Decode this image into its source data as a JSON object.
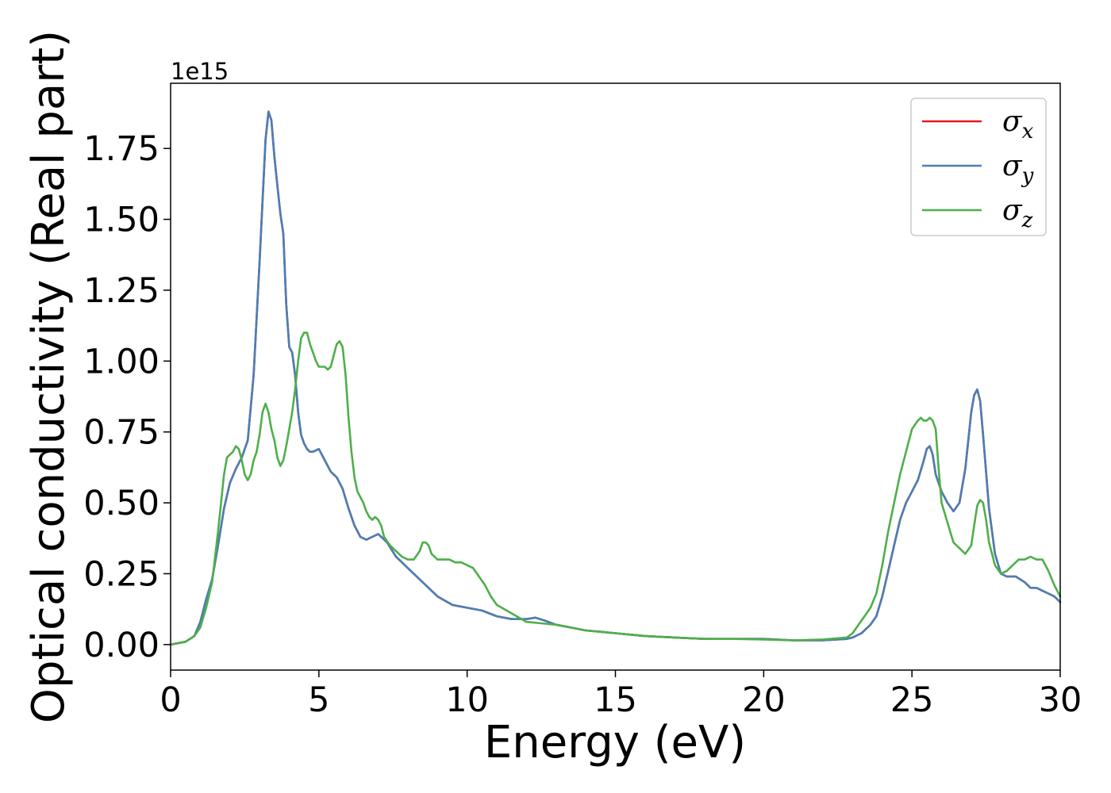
{
  "chart_data": {
    "type": "line",
    "title": "",
    "xlabel": "Energy (eV)",
    "ylabel": "Optical conductivity (Real part)",
    "y_offset_label": "1e15",
    "xlim": [
      0,
      30
    ],
    "ylim": [
      -0.09,
      1.98
    ],
    "x_ticks": [
      0,
      5,
      10,
      15,
      20,
      25,
      30
    ],
    "x_tick_labels": [
      "0",
      "5",
      "10",
      "15",
      "20",
      "25",
      "30"
    ],
    "y_ticks": [
      0.0,
      0.25,
      0.5,
      0.75,
      1.0,
      1.25,
      1.5,
      1.75
    ],
    "y_tick_labels": [
      "0.00",
      "0.25",
      "0.50",
      "0.75",
      "1.00",
      "1.25",
      "1.50",
      "1.75"
    ],
    "grid": false,
    "legend": {
      "position": "top-right",
      "entries": [
        {
          "base": "σ",
          "sub": "x",
          "color": "#e41a1c"
        },
        {
          "base": "σ",
          "sub": "y",
          "color": "#4a7fb5"
        },
        {
          "base": "σ",
          "sub": "z",
          "color": "#4daf4a"
        }
      ]
    },
    "series": [
      {
        "color": "#e41a1c",
        "x": [
          0,
          0.5,
          0.8,
          1.0,
          1.2,
          1.4,
          1.6,
          1.8,
          2.0,
          2.2,
          2.4,
          2.6,
          2.8,
          3.0,
          3.2,
          3.3,
          3.4,
          3.5,
          3.6,
          3.7,
          3.8,
          3.9,
          4.0,
          4.1,
          4.2,
          4.3,
          4.4,
          4.5,
          4.6,
          4.7,
          4.8,
          5.0,
          5.2,
          5.4,
          5.6,
          5.8,
          6.0,
          6.2,
          6.4,
          6.6,
          6.8,
          7.0,
          7.3,
          7.6,
          8.0,
          8.5,
          9.0,
          9.5,
          10.0,
          10.5,
          11.0,
          11.5,
          12.0,
          12.3,
          12.6,
          13.0,
          13.5,
          14.0,
          14.5,
          15.0,
          16.0,
          17.0,
          18.0,
          19.0,
          20.0,
          21.0,
          22.0,
          22.8,
          23.0,
          23.3,
          23.6,
          23.8,
          24.0,
          24.2,
          24.4,
          24.6,
          24.8,
          25.0,
          25.2,
          25.4,
          25.5,
          25.6,
          25.7,
          25.8,
          26.0,
          26.2,
          26.4,
          26.6,
          26.8,
          27.0,
          27.1,
          27.2,
          27.3,
          27.4,
          27.6,
          27.8,
          28.0,
          28.2,
          28.5,
          28.8,
          29.0,
          29.2,
          29.4,
          29.6,
          29.8,
          30.0
        ],
        "values": [
          0.0,
          0.01,
          0.03,
          0.08,
          0.16,
          0.23,
          0.35,
          0.48,
          0.57,
          0.62,
          0.66,
          0.72,
          0.95,
          1.35,
          1.78,
          1.88,
          1.85,
          1.72,
          1.62,
          1.52,
          1.45,
          1.2,
          1.05,
          1.03,
          0.95,
          0.82,
          0.74,
          0.71,
          0.69,
          0.68,
          0.68,
          0.69,
          0.65,
          0.61,
          0.59,
          0.55,
          0.48,
          0.42,
          0.38,
          0.37,
          0.38,
          0.39,
          0.36,
          0.31,
          0.27,
          0.22,
          0.17,
          0.14,
          0.13,
          0.12,
          0.1,
          0.09,
          0.09,
          0.095,
          0.085,
          0.07,
          0.06,
          0.05,
          0.045,
          0.04,
          0.03,
          0.025,
          0.02,
          0.02,
          0.02,
          0.015,
          0.015,
          0.02,
          0.025,
          0.04,
          0.07,
          0.1,
          0.17,
          0.26,
          0.35,
          0.44,
          0.5,
          0.54,
          0.58,
          0.65,
          0.69,
          0.7,
          0.67,
          0.6,
          0.54,
          0.5,
          0.47,
          0.5,
          0.62,
          0.82,
          0.88,
          0.9,
          0.86,
          0.74,
          0.48,
          0.32,
          0.25,
          0.24,
          0.24,
          0.22,
          0.2,
          0.2,
          0.19,
          0.18,
          0.17,
          0.15
        ]
      },
      {
        "color": "#4a7fb5",
        "x": [
          0,
          0.5,
          0.8,
          1.0,
          1.2,
          1.4,
          1.6,
          1.8,
          2.0,
          2.2,
          2.4,
          2.6,
          2.8,
          3.0,
          3.2,
          3.3,
          3.4,
          3.5,
          3.6,
          3.7,
          3.8,
          3.9,
          4.0,
          4.1,
          4.2,
          4.3,
          4.4,
          4.5,
          4.6,
          4.7,
          4.8,
          5.0,
          5.2,
          5.4,
          5.6,
          5.8,
          6.0,
          6.2,
          6.4,
          6.6,
          6.8,
          7.0,
          7.3,
          7.6,
          8.0,
          8.5,
          9.0,
          9.5,
          10.0,
          10.5,
          11.0,
          11.5,
          12.0,
          12.3,
          12.6,
          13.0,
          13.5,
          14.0,
          14.5,
          15.0,
          16.0,
          17.0,
          18.0,
          19.0,
          20.0,
          21.0,
          22.0,
          22.8,
          23.0,
          23.3,
          23.6,
          23.8,
          24.0,
          24.2,
          24.4,
          24.6,
          24.8,
          25.0,
          25.2,
          25.4,
          25.5,
          25.6,
          25.7,
          25.8,
          26.0,
          26.2,
          26.4,
          26.6,
          26.8,
          27.0,
          27.1,
          27.2,
          27.3,
          27.4,
          27.6,
          27.8,
          28.0,
          28.2,
          28.5,
          28.8,
          29.0,
          29.2,
          29.4,
          29.6,
          29.8,
          30.0
        ],
        "values": [
          0.0,
          0.01,
          0.03,
          0.08,
          0.16,
          0.23,
          0.35,
          0.48,
          0.57,
          0.62,
          0.66,
          0.72,
          0.95,
          1.35,
          1.78,
          1.88,
          1.85,
          1.72,
          1.62,
          1.52,
          1.45,
          1.2,
          1.05,
          1.03,
          0.95,
          0.82,
          0.74,
          0.71,
          0.69,
          0.68,
          0.68,
          0.69,
          0.65,
          0.61,
          0.59,
          0.55,
          0.48,
          0.42,
          0.38,
          0.37,
          0.38,
          0.39,
          0.36,
          0.31,
          0.27,
          0.22,
          0.17,
          0.14,
          0.13,
          0.12,
          0.1,
          0.09,
          0.09,
          0.095,
          0.085,
          0.07,
          0.06,
          0.05,
          0.045,
          0.04,
          0.03,
          0.025,
          0.02,
          0.02,
          0.02,
          0.015,
          0.015,
          0.02,
          0.025,
          0.04,
          0.07,
          0.1,
          0.17,
          0.26,
          0.35,
          0.44,
          0.5,
          0.54,
          0.58,
          0.65,
          0.69,
          0.7,
          0.67,
          0.6,
          0.54,
          0.5,
          0.47,
          0.5,
          0.62,
          0.82,
          0.88,
          0.9,
          0.86,
          0.74,
          0.48,
          0.32,
          0.25,
          0.24,
          0.24,
          0.22,
          0.2,
          0.2,
          0.19,
          0.18,
          0.17,
          0.15
        ]
      },
      {
        "color": "#4daf4a",
        "x": [
          0,
          0.5,
          0.8,
          1.0,
          1.2,
          1.4,
          1.6,
          1.8,
          1.9,
          2.0,
          2.1,
          2.2,
          2.3,
          2.4,
          2.5,
          2.6,
          2.7,
          2.8,
          2.9,
          3.0,
          3.1,
          3.2,
          3.3,
          3.4,
          3.5,
          3.6,
          3.7,
          3.8,
          3.9,
          4.0,
          4.1,
          4.2,
          4.3,
          4.4,
          4.5,
          4.6,
          4.7,
          4.8,
          4.9,
          5.0,
          5.1,
          5.2,
          5.3,
          5.4,
          5.5,
          5.6,
          5.7,
          5.8,
          5.9,
          6.0,
          6.1,
          6.2,
          6.3,
          6.4,
          6.5,
          6.6,
          6.7,
          6.8,
          6.9,
          7.0,
          7.1,
          7.2,
          7.4,
          7.6,
          7.8,
          8.0,
          8.2,
          8.4,
          8.5,
          8.6,
          8.7,
          8.8,
          9.0,
          9.2,
          9.4,
          9.6,
          9.8,
          10.0,
          10.2,
          10.4,
          10.6,
          10.8,
          11.0,
          11.5,
          12.0,
          12.5,
          13.0,
          13.5,
          14.0,
          14.5,
          15.0,
          16.0,
          17.0,
          18.0,
          19.0,
          20.0,
          21.0,
          22.0,
          22.8,
          23.0,
          23.2,
          23.4,
          23.6,
          23.8,
          24.0,
          24.2,
          24.4,
          24.6,
          24.8,
          25.0,
          25.2,
          25.3,
          25.4,
          25.5,
          25.6,
          25.7,
          25.8,
          25.9,
          26.0,
          26.2,
          26.4,
          26.6,
          26.8,
          27.0,
          27.1,
          27.2,
          27.3,
          27.4,
          27.5,
          27.6,
          27.8,
          28.0,
          28.2,
          28.4,
          28.6,
          28.8,
          29.0,
          29.2,
          29.4,
          29.6,
          29.8,
          30.0
        ],
        "values": [
          0.0,
          0.01,
          0.03,
          0.06,
          0.13,
          0.22,
          0.4,
          0.6,
          0.66,
          0.67,
          0.68,
          0.7,
          0.69,
          0.65,
          0.6,
          0.58,
          0.6,
          0.65,
          0.68,
          0.74,
          0.82,
          0.85,
          0.82,
          0.76,
          0.72,
          0.66,
          0.63,
          0.65,
          0.7,
          0.76,
          0.82,
          0.9,
          1.0,
          1.08,
          1.1,
          1.1,
          1.06,
          1.03,
          1.0,
          0.98,
          0.98,
          0.98,
          0.97,
          0.98,
          1.02,
          1.06,
          1.07,
          1.05,
          0.95,
          0.8,
          0.68,
          0.59,
          0.54,
          0.52,
          0.5,
          0.47,
          0.45,
          0.44,
          0.45,
          0.44,
          0.42,
          0.38,
          0.35,
          0.33,
          0.31,
          0.3,
          0.3,
          0.33,
          0.36,
          0.36,
          0.35,
          0.32,
          0.3,
          0.3,
          0.3,
          0.29,
          0.29,
          0.28,
          0.27,
          0.24,
          0.21,
          0.17,
          0.14,
          0.11,
          0.08,
          0.075,
          0.07,
          0.06,
          0.05,
          0.045,
          0.04,
          0.03,
          0.025,
          0.02,
          0.02,
          0.018,
          0.015,
          0.018,
          0.025,
          0.04,
          0.07,
          0.1,
          0.13,
          0.18,
          0.28,
          0.4,
          0.5,
          0.6,
          0.68,
          0.76,
          0.79,
          0.8,
          0.79,
          0.79,
          0.8,
          0.79,
          0.76,
          0.62,
          0.5,
          0.43,
          0.36,
          0.34,
          0.32,
          0.35,
          0.42,
          0.49,
          0.51,
          0.5,
          0.44,
          0.36,
          0.28,
          0.25,
          0.26,
          0.28,
          0.3,
          0.3,
          0.31,
          0.3,
          0.3,
          0.26,
          0.21,
          0.17
        ]
      }
    ]
  }
}
